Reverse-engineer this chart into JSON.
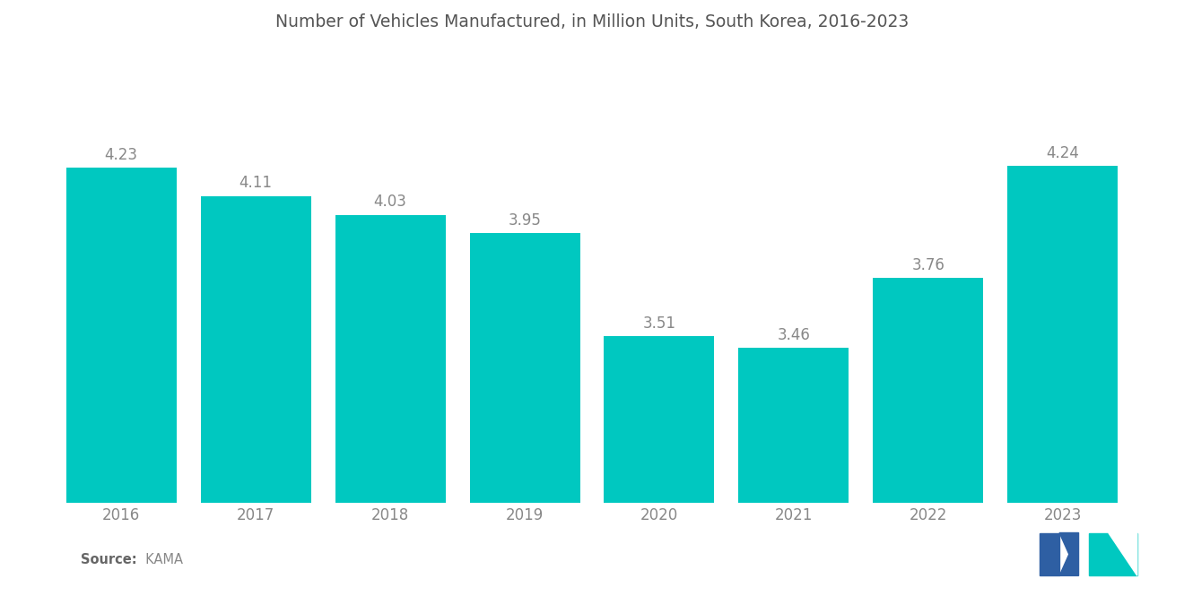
{
  "title": "Number of Vehicles Manufactured, in Million Units, South Korea, 2016-2023",
  "years": [
    "2016",
    "2017",
    "2018",
    "2019",
    "2020",
    "2021",
    "2022",
    "2023"
  ],
  "values": [
    4.23,
    4.11,
    4.03,
    3.95,
    3.51,
    3.46,
    3.76,
    4.24
  ],
  "bar_color": "#00C8C0",
  "background_color": "#ffffff",
  "title_fontsize": 13.5,
  "label_fontsize": 12,
  "value_fontsize": 12,
  "source_bold": "Source:",
  "source_text": "  KAMA",
  "ylim": [
    2.8,
    4.7
  ],
  "bar_width": 0.82,
  "text_color": "#888888",
  "logo_left_color": "#2E5FA3",
  "logo_right_color": "#00C8C0"
}
